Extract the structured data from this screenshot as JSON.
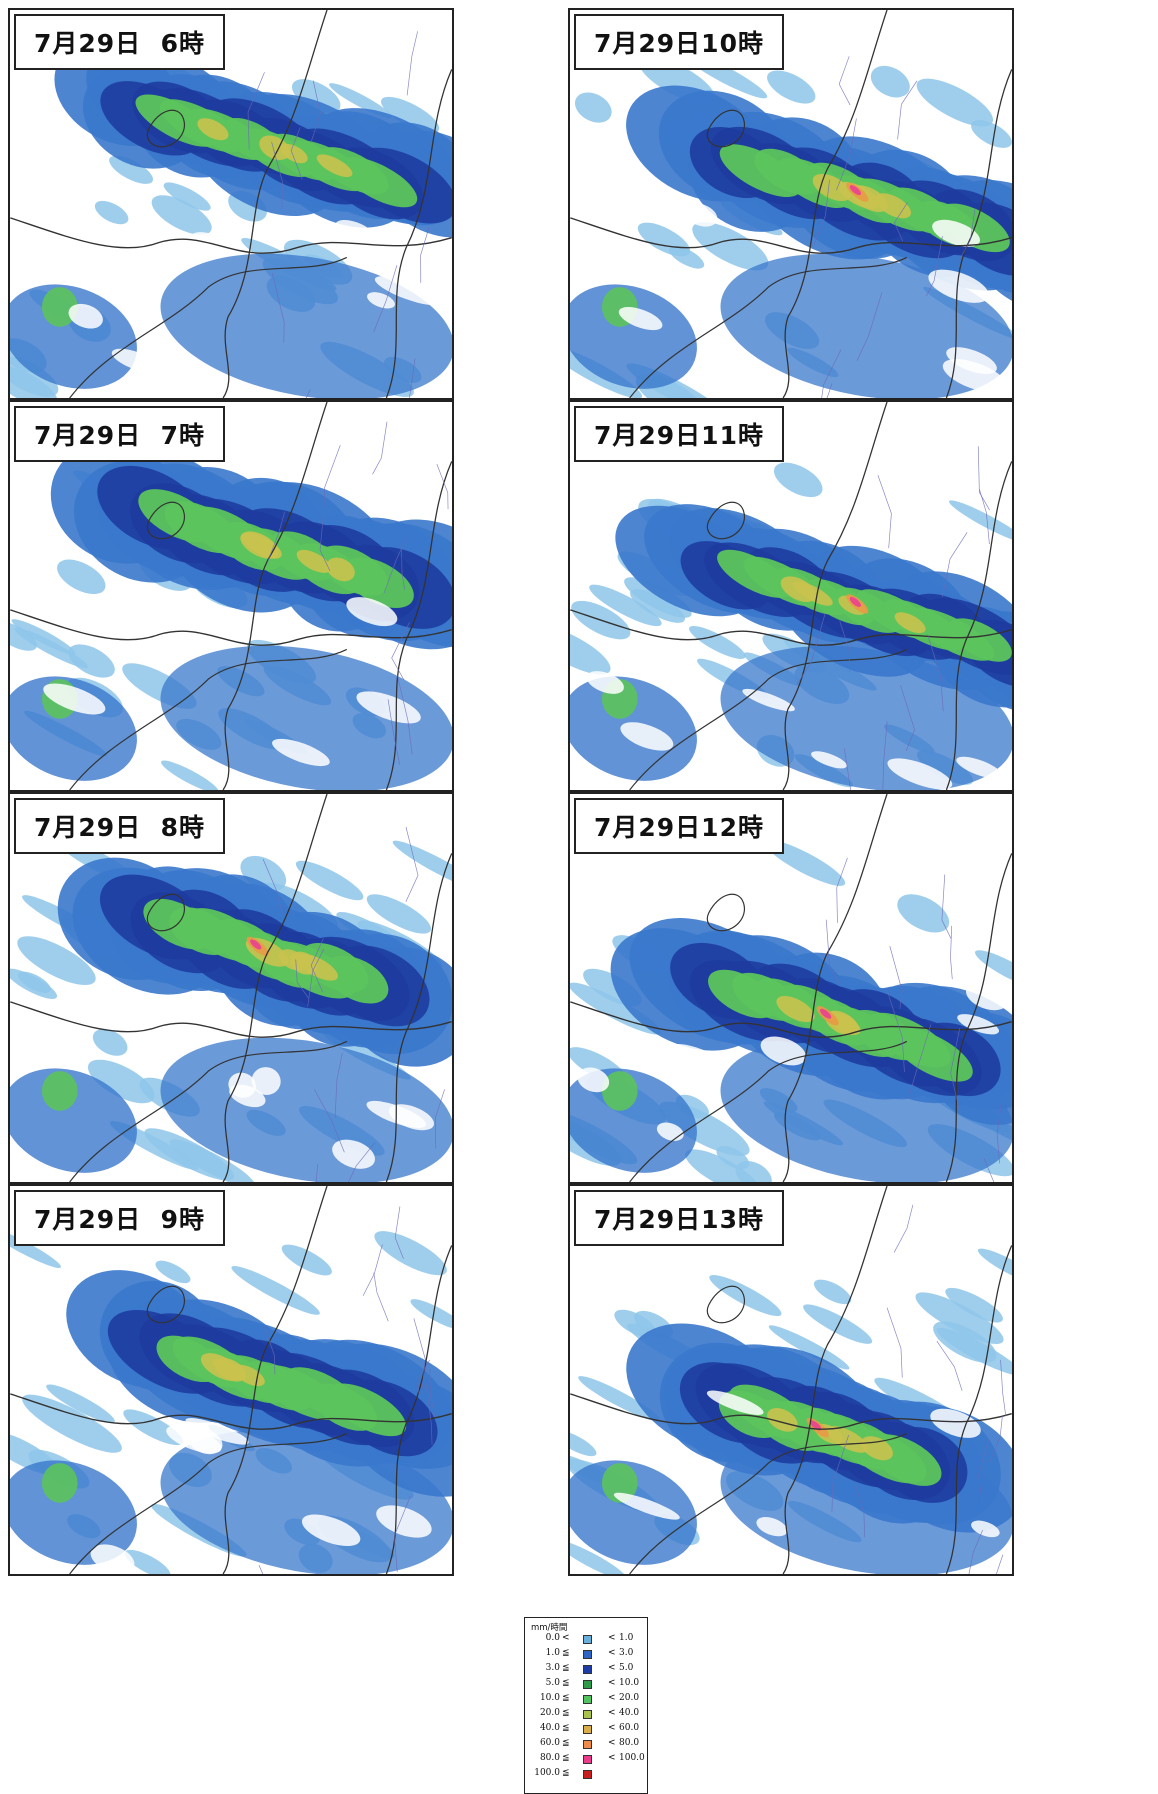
{
  "panels": [
    {
      "label": "7月29日  6時"
    },
    {
      "label": "7月29日10時"
    },
    {
      "label": "7月29日  7時"
    },
    {
      "label": "7月29日11時"
    },
    {
      "label": "7月29日  8時"
    },
    {
      "label": "7月29日12時"
    },
    {
      "label": "7月29日  9時"
    },
    {
      "label": "7月29日13時"
    }
  ],
  "legend": {
    "unit": "mm/時間",
    "less_than": "<",
    "rows": [
      {
        "lower": "0.0",
        "op": "<",
        "upper": "1.0",
        "color": "#6aaedc"
      },
      {
        "lower": "1.0",
        "op": "≦",
        "upper": "3.0",
        "color": "#2e64c4"
      },
      {
        "lower": "3.0",
        "op": "≦",
        "upper": "5.0",
        "color": "#1e3ca8"
      },
      {
        "lower": "5.0",
        "op": "≦",
        "upper": "10.0",
        "color": "#2f9b4a"
      },
      {
        "lower": "10.0",
        "op": "≦",
        "upper": "20.0",
        "color": "#52c35e"
      },
      {
        "lower": "20.0",
        "op": "≦",
        "upper": "40.0",
        "color": "#a9c24d"
      },
      {
        "lower": "40.0",
        "op": "≦",
        "upper": "60.0",
        "color": "#d9ad48"
      },
      {
        "lower": "60.0",
        "op": "≦",
        "upper": "80.0",
        "color": "#f08a4a"
      },
      {
        "lower": "80.0",
        "op": "≦",
        "upper": "100.0",
        "color": "#ea3c8a"
      },
      {
        "lower": "100.0",
        "op": "≦",
        "upper": "",
        "color": "#c81e1e"
      }
    ]
  },
  "palette": {
    "light": "#8ec6ea",
    "medium": "#3a78cc",
    "dark": "#1e3ca0",
    "green_dark": "#2f9b4a",
    "green": "#5cc45c",
    "yellow": "#c9c24e",
    "orange": "#e89a46",
    "magenta": "#e8468e",
    "boundary": "#333333",
    "municipal": "#6a6ab8"
  }
}
